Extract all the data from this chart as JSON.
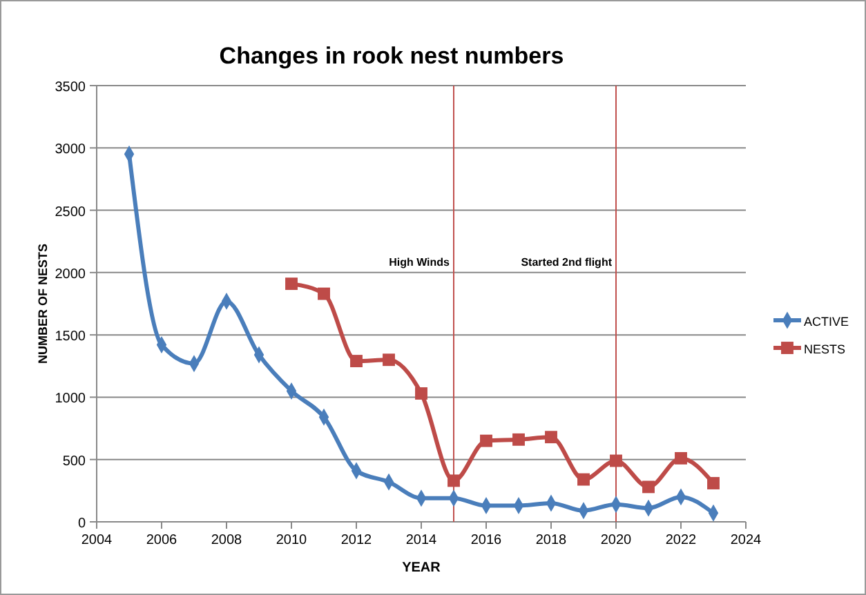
{
  "chart_data": {
    "type": "line",
    "title": "Changes in rook nest numbers",
    "xlabel": "YEAR",
    "ylabel": "NUMBER OF NESTS",
    "series": [
      {
        "name": "ACTIVE",
        "color": "#4a7ebb",
        "x": [
          2005,
          2006,
          2007,
          2008,
          2009,
          2010,
          2011,
          2012,
          2013,
          2014,
          2015,
          2016,
          2017,
          2018,
          2019,
          2020,
          2021,
          2022,
          2023
        ],
        "values": [
          2950,
          1420,
          1270,
          1770,
          1340,
          1050,
          840,
          410,
          320,
          190,
          190,
          130,
          130,
          150,
          90,
          140,
          110,
          200,
          70
        ],
        "marker": "diamond"
      },
      {
        "name": "NESTS",
        "color": "#be4b48",
        "x": [
          2010,
          2011,
          2012,
          2013,
          2014,
          2015,
          2016,
          2017,
          2018,
          2019,
          2020,
          2021,
          2022,
          2023
        ],
        "values": [
          1910,
          1830,
          1290,
          1300,
          1030,
          330,
          650,
          660,
          680,
          340,
          490,
          280,
          510,
          310
        ],
        "marker": "square"
      }
    ],
    "xlim": [
      2004,
      2024
    ],
    "xticks": [
      2004,
      2006,
      2008,
      2010,
      2012,
      2014,
      2016,
      2018,
      2020,
      2022,
      2024
    ],
    "ylim": [
      0,
      3500
    ],
    "yticks": [
      0,
      500,
      1000,
      1500,
      2000,
      2500,
      3000,
      3500
    ],
    "grid": "y",
    "legend": "right",
    "ref_lines": [
      {
        "axis": "x",
        "value": 2015,
        "label": "High Winds",
        "color": "#c0504d"
      },
      {
        "axis": "x",
        "value": 2020,
        "label": "Started 2nd flight",
        "color": "#c0504d"
      }
    ]
  }
}
